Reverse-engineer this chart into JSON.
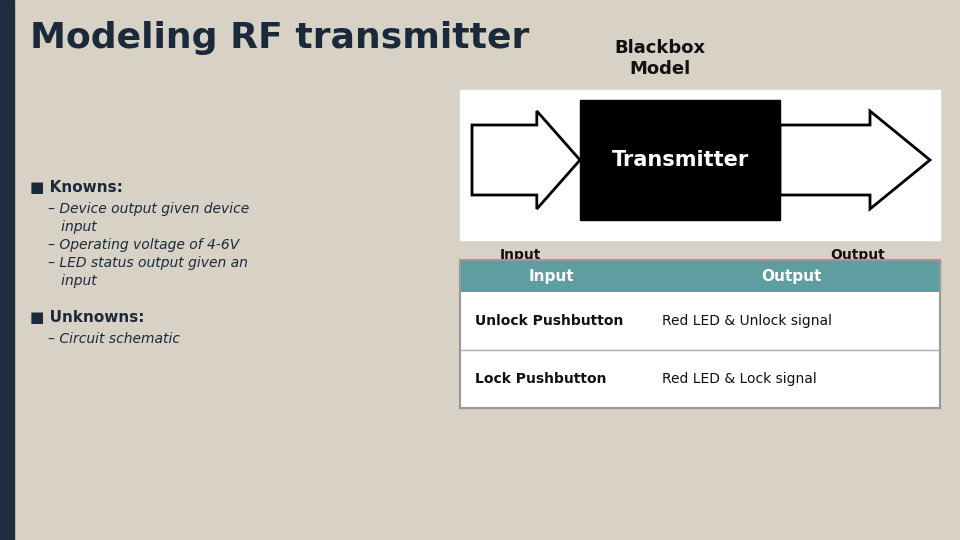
{
  "title": "Modeling RF transmitter",
  "title_fontsize": 26,
  "title_color": "#1a2a3a",
  "bg_color": "#d8d2c6",
  "left_stripe_color": "#1e2e3e",
  "transmitter_box_color": "#000000",
  "transmitter_text": "Transmitter",
  "transmitter_text_color": "#ffffff",
  "transmitter_text_fontsize": 15,
  "blackbox_label": "Blackbox\nModel",
  "blackbox_label_fontsize": 13,
  "blackbox_label_color": "#111111",
  "input_label": "Input",
  "output_label": "Output",
  "io_label_fontsize": 10,
  "io_label_color": "#111111",
  "table_header_bg": "#5f9ea0",
  "table_header_text_color": "#ffffff",
  "table_header_fontsize": 11,
  "table_border_color": "#999999",
  "table_row_data": [
    [
      "Unlock Pushbutton",
      "Red LED & Unlock signal"
    ],
    [
      "Lock Pushbutton",
      "Red LED & Lock signal"
    ]
  ],
  "table_cell_fontsize": 10,
  "knowns_header": "■ Knowns:",
  "knowns_bullets": [
    "– Device output given device input",
    "– Operating voltage of 4-6V",
    "– LED status output given an input"
  ],
  "unknowns_header": "■ Unknowns:",
  "unknowns_bullets": [
    "– Circuit schematic"
  ],
  "bullet_fontsize": 11,
  "bullet_text_color": "#1a2a3a",
  "diagram_white_bg": "#ffffff",
  "diagram_bg_border": "#cccccc"
}
